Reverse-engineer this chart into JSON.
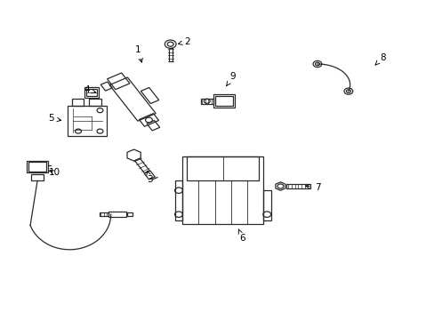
{
  "background_color": "#ffffff",
  "line_color": "#2a2a2a",
  "label_color": "#000000",
  "fig_width": 4.89,
  "fig_height": 3.6,
  "dpi": 100,
  "label_fontsize": 7.5,
  "labels": {
    "1": [
      0.318,
      0.845,
      0.328,
      0.795
    ],
    "2": [
      0.43,
      0.87,
      0.408,
      0.862
    ],
    "3": [
      0.345,
      0.44,
      0.338,
      0.468
    ],
    "4": [
      0.2,
      0.72,
      0.222,
      0.71
    ],
    "5": [
      0.118,
      0.63,
      0.148,
      0.622
    ],
    "6": [
      0.558,
      0.255,
      0.548,
      0.285
    ],
    "7": [
      0.73,
      0.415,
      0.695,
      0.42
    ],
    "8": [
      0.88,
      0.82,
      0.858,
      0.79
    ],
    "9": [
      0.535,
      0.76,
      0.52,
      0.73
    ],
    "10": [
      0.125,
      0.46,
      0.108,
      0.472
    ]
  }
}
